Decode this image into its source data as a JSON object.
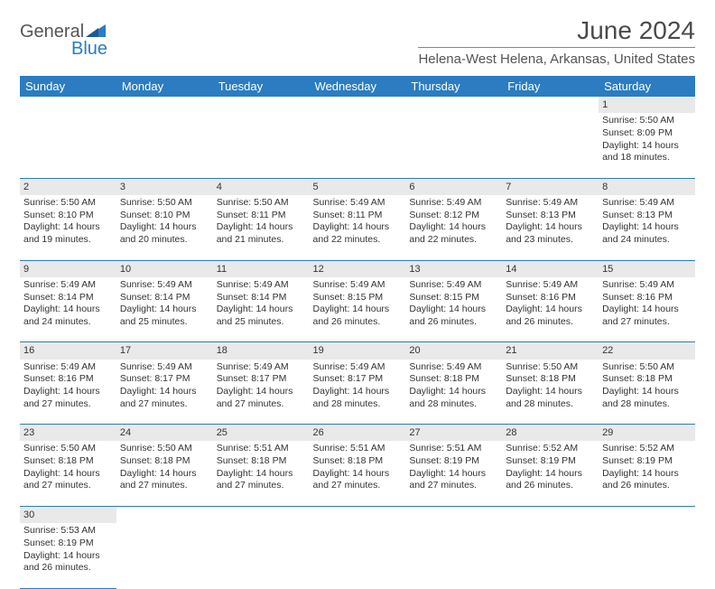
{
  "brand": {
    "part1": "General",
    "part2": "Blue"
  },
  "title": "June 2024",
  "location": "Helena-West Helena, Arkansas, United States",
  "colors": {
    "header_bg": "#2b7cc1",
    "header_fg": "#ffffff",
    "daynum_bg": "#e9e9e9",
    "rule": "#2b7cc1",
    "text": "#333333"
  },
  "dayNames": [
    "Sunday",
    "Monday",
    "Tuesday",
    "Wednesday",
    "Thursday",
    "Friday",
    "Saturday"
  ],
  "weeks": [
    [
      null,
      null,
      null,
      null,
      null,
      null,
      {
        "n": "1",
        "sr": "5:50 AM",
        "ss": "8:09 PM",
        "dl": "14 hours and 18 minutes."
      }
    ],
    [
      {
        "n": "2",
        "sr": "5:50 AM",
        "ss": "8:10 PM",
        "dl": "14 hours and 19 minutes."
      },
      {
        "n": "3",
        "sr": "5:50 AM",
        "ss": "8:10 PM",
        "dl": "14 hours and 20 minutes."
      },
      {
        "n": "4",
        "sr": "5:50 AM",
        "ss": "8:11 PM",
        "dl": "14 hours and 21 minutes."
      },
      {
        "n": "5",
        "sr": "5:49 AM",
        "ss": "8:11 PM",
        "dl": "14 hours and 22 minutes."
      },
      {
        "n": "6",
        "sr": "5:49 AM",
        "ss": "8:12 PM",
        "dl": "14 hours and 22 minutes."
      },
      {
        "n": "7",
        "sr": "5:49 AM",
        "ss": "8:13 PM",
        "dl": "14 hours and 23 minutes."
      },
      {
        "n": "8",
        "sr": "5:49 AM",
        "ss": "8:13 PM",
        "dl": "14 hours and 24 minutes."
      }
    ],
    [
      {
        "n": "9",
        "sr": "5:49 AM",
        "ss": "8:14 PM",
        "dl": "14 hours and 24 minutes."
      },
      {
        "n": "10",
        "sr": "5:49 AM",
        "ss": "8:14 PM",
        "dl": "14 hours and 25 minutes."
      },
      {
        "n": "11",
        "sr": "5:49 AM",
        "ss": "8:14 PM",
        "dl": "14 hours and 25 minutes."
      },
      {
        "n": "12",
        "sr": "5:49 AM",
        "ss": "8:15 PM",
        "dl": "14 hours and 26 minutes."
      },
      {
        "n": "13",
        "sr": "5:49 AM",
        "ss": "8:15 PM",
        "dl": "14 hours and 26 minutes."
      },
      {
        "n": "14",
        "sr": "5:49 AM",
        "ss": "8:16 PM",
        "dl": "14 hours and 26 minutes."
      },
      {
        "n": "15",
        "sr": "5:49 AM",
        "ss": "8:16 PM",
        "dl": "14 hours and 27 minutes."
      }
    ],
    [
      {
        "n": "16",
        "sr": "5:49 AM",
        "ss": "8:16 PM",
        "dl": "14 hours and 27 minutes."
      },
      {
        "n": "17",
        "sr": "5:49 AM",
        "ss": "8:17 PM",
        "dl": "14 hours and 27 minutes."
      },
      {
        "n": "18",
        "sr": "5:49 AM",
        "ss": "8:17 PM",
        "dl": "14 hours and 27 minutes."
      },
      {
        "n": "19",
        "sr": "5:49 AM",
        "ss": "8:17 PM",
        "dl": "14 hours and 28 minutes."
      },
      {
        "n": "20",
        "sr": "5:49 AM",
        "ss": "8:18 PM",
        "dl": "14 hours and 28 minutes."
      },
      {
        "n": "21",
        "sr": "5:50 AM",
        "ss": "8:18 PM",
        "dl": "14 hours and 28 minutes."
      },
      {
        "n": "22",
        "sr": "5:50 AM",
        "ss": "8:18 PM",
        "dl": "14 hours and 28 minutes."
      }
    ],
    [
      {
        "n": "23",
        "sr": "5:50 AM",
        "ss": "8:18 PM",
        "dl": "14 hours and 27 minutes."
      },
      {
        "n": "24",
        "sr": "5:50 AM",
        "ss": "8:18 PM",
        "dl": "14 hours and 27 minutes."
      },
      {
        "n": "25",
        "sr": "5:51 AM",
        "ss": "8:18 PM",
        "dl": "14 hours and 27 minutes."
      },
      {
        "n": "26",
        "sr": "5:51 AM",
        "ss": "8:18 PM",
        "dl": "14 hours and 27 minutes."
      },
      {
        "n": "27",
        "sr": "5:51 AM",
        "ss": "8:19 PM",
        "dl": "14 hours and 27 minutes."
      },
      {
        "n": "28",
        "sr": "5:52 AM",
        "ss": "8:19 PM",
        "dl": "14 hours and 26 minutes."
      },
      {
        "n": "29",
        "sr": "5:52 AM",
        "ss": "8:19 PM",
        "dl": "14 hours and 26 minutes."
      }
    ],
    [
      {
        "n": "30",
        "sr": "5:53 AM",
        "ss": "8:19 PM",
        "dl": "14 hours and 26 minutes."
      },
      null,
      null,
      null,
      null,
      null,
      null
    ]
  ],
  "labels": {
    "sunrise": "Sunrise: ",
    "sunset": "Sunset: ",
    "daylight": "Daylight: "
  }
}
